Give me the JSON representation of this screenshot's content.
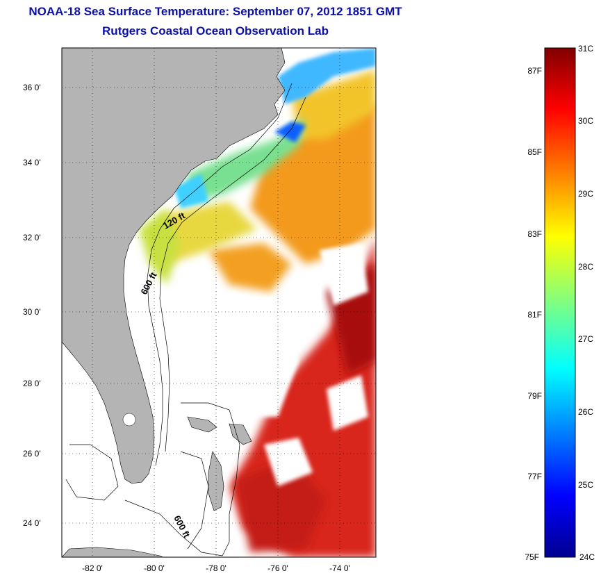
{
  "title": {
    "line1": "NOAA-18 Sea Surface Temperature:  September 07, 2012 1851 GMT",
    "line2": "Rutgers Coastal Ocean Observation Lab"
  },
  "map": {
    "lat_ticks": [
      "36 0'",
      "34 0'",
      "32 0'",
      "30 0'",
      "28 0'",
      "26 0'",
      "24 0'"
    ],
    "lon_ticks": [
      "-82 0'",
      "-80 0'",
      "-78 0'",
      "-76 0'",
      "-74 0'"
    ],
    "contour_labels": [
      "120 ft",
      "600 ft",
      "600 ft"
    ],
    "grid": true,
    "land_color": "#b4b4b4"
  },
  "colorbar": {
    "celsius_labels": [
      "31C",
      "30C",
      "29C",
      "28C",
      "27C",
      "26C",
      "25C",
      "24C"
    ],
    "fahrenheit_labels": [
      "87F",
      "85F",
      "83F",
      "81F",
      "79F",
      "77F",
      "75F"
    ],
    "colormap": "jet",
    "min_c": 24,
    "max_c": 31
  }
}
